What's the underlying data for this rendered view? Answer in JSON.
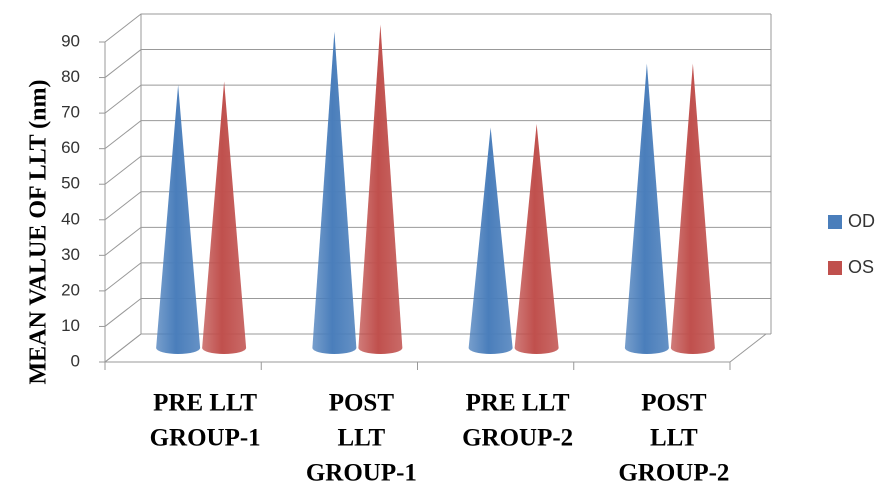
{
  "chart_data": {
    "type": "cone",
    "y_label": "MEAN VALUE OF LLT (nm)",
    "categories": [
      [
        "PRE LLT",
        "GROUP-1"
      ],
      [
        "POST",
        "LLT",
        "GROUP-1"
      ],
      [
        "PRE LLT",
        "GROUP-2"
      ],
      [
        "POST",
        "LLT",
        "GROUP-2"
      ]
    ],
    "series": [
      {
        "name": "OD",
        "color": "#4a7ebb",
        "values": [
          74,
          89,
          62,
          80
        ]
      },
      {
        "name": "OS",
        "color": "#c0504d",
        "values": [
          75,
          91,
          63,
          80
        ]
      }
    ],
    "ylim": [
      0,
      90
    ],
    "yticks": [
      0,
      10,
      20,
      30,
      40,
      50,
      60,
      70,
      80,
      90
    ],
    "grid": true,
    "legend": "right"
  }
}
